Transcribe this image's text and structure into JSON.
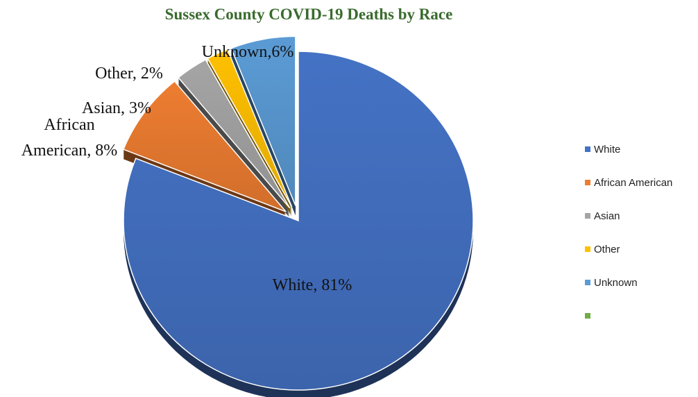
{
  "chart_data": {
    "type": "pie",
    "title": "Sussex County COVID-19 Deaths by Race",
    "categories": [
      "White",
      "African American",
      "Asian",
      "Other",
      "Unknown"
    ],
    "values": [
      81,
      8,
      3,
      2,
      6
    ],
    "unit": "%",
    "data_labels": [
      "White, 81%",
      "African American, 8%",
      "Asian, 3%",
      "Other, 2%",
      "Unknown,6%"
    ],
    "colors": [
      "#4472c4",
      "#ed7d31",
      "#a5a5a5",
      "#ffc000",
      "#5b9bd5"
    ],
    "style": "3d-exploded",
    "legend": {
      "position": "right",
      "entries": [
        {
          "label": "White",
          "color": "#4472c4"
        },
        {
          "label": "African American",
          "color": "#ed7d31"
        },
        {
          "label": "Asian",
          "color": "#a5a5a5"
        },
        {
          "label": "Other",
          "color": "#ffc000"
        },
        {
          "label": "Unknown",
          "color": "#5b9bd5"
        },
        {
          "label": "",
          "color": "#70ad47"
        }
      ]
    }
  }
}
